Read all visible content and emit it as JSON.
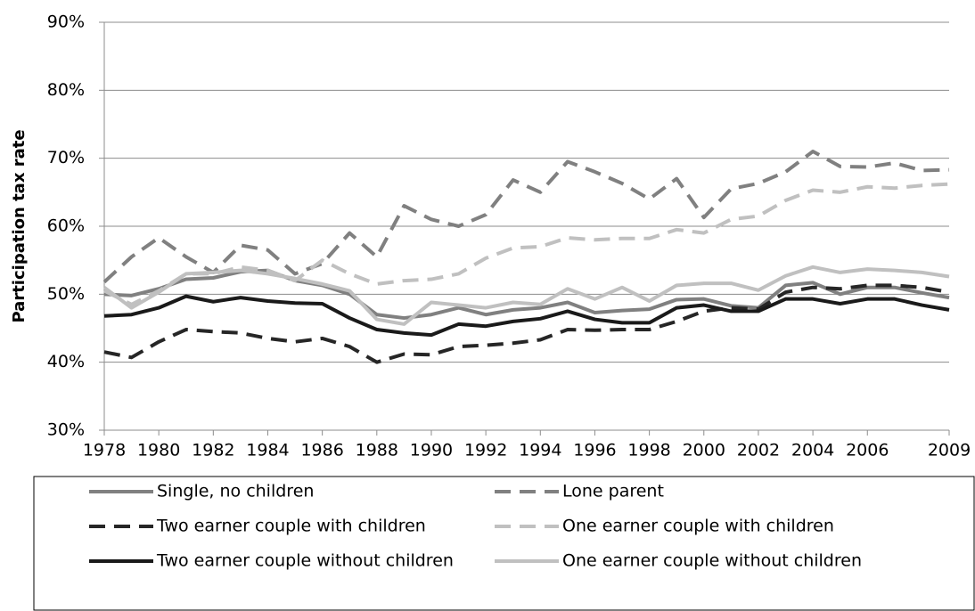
{
  "chart_data": {
    "type": "line",
    "y_label": "Participation tax rate",
    "x": [
      1978,
      1979,
      1980,
      1981,
      1982,
      1983,
      1984,
      1985,
      1986,
      1987,
      1988,
      1989,
      1990,
      1991,
      1992,
      1993,
      1994,
      1995,
      1996,
      1997,
      1998,
      1999,
      2000,
      2001,
      2002,
      2003,
      2004,
      2005,
      2006,
      2007,
      2008,
      2009
    ],
    "xlim": [
      1978,
      2009
    ],
    "xticks": [
      1978,
      1980,
      1982,
      1984,
      1986,
      1988,
      1990,
      1992,
      1994,
      1996,
      1998,
      2000,
      2002,
      2004,
      2006,
      2009
    ],
    "ylim": [
      30,
      90
    ],
    "yticks": [
      {
        "value": 30,
        "label": "30%"
      },
      {
        "value": 40,
        "label": "40%"
      },
      {
        "value": 50,
        "label": "50%"
      },
      {
        "value": 60,
        "label": "60%"
      },
      {
        "value": 70,
        "label": "70%"
      },
      {
        "value": 80,
        "label": "80%"
      },
      {
        "value": 90,
        "label": "90%"
      }
    ],
    "grid": true,
    "legend": "bottom",
    "series": [
      {
        "name": "Single, no children",
        "color": "#808080",
        "style": "solid",
        "values": [
          50,
          49.8,
          50.8,
          52.2,
          52.4,
          53.3,
          53.5,
          52,
          51.3,
          50,
          47,
          46.5,
          47,
          48,
          47,
          47.7,
          48,
          48.8,
          47.3,
          47.6,
          47.8,
          49.2,
          49.3,
          48.3,
          48,
          51.3,
          51.7,
          50,
          51,
          51,
          50.2,
          49.5
        ]
      },
      {
        "name": "Lone parent",
        "color": "#808080",
        "style": "dashed",
        "values": [
          51.8,
          55.5,
          58.3,
          55.5,
          53.2,
          57.2,
          56.5,
          53,
          54.5,
          59,
          55.5,
          63,
          61,
          60,
          61.7,
          66.8,
          65,
          69.5,
          68,
          66.3,
          64,
          67,
          61.3,
          65.5,
          66.3,
          68,
          71,
          68.8,
          68.7,
          69.3,
          68.2,
          68.3
        ]
      },
      {
        "name": "Two earner couple with children",
        "color": "#262626",
        "style": "dashed",
        "values": [
          41.5,
          40.7,
          43,
          44.8,
          44.5,
          44.3,
          43.5,
          43,
          43.5,
          42.3,
          40,
          41.2,
          41.1,
          42.3,
          42.5,
          42.8,
          43.3,
          44.8,
          44.7,
          44.8,
          44.8,
          46,
          47.5,
          48,
          47.8,
          50.3,
          51,
          50.8,
          51.3,
          51.3,
          51,
          50.3
        ]
      },
      {
        "name": "One earner couple with children",
        "color": "#c0c0c0",
        "style": "dashed",
        "values": [
          50.5,
          48.5,
          50.5,
          53,
          53,
          54,
          53.5,
          52,
          55,
          53,
          51.5,
          52,
          52.2,
          53,
          55.3,
          56.8,
          57,
          58.3,
          58,
          58.2,
          58.2,
          59.5,
          59,
          61,
          61.5,
          63.8,
          65.3,
          65,
          65.8,
          65.6,
          66,
          66.2
        ]
      },
      {
        "name": "Two earner couple without children",
        "color": "#1a1a1a",
        "style": "solid",
        "values": [
          46.8,
          47,
          48,
          49.7,
          48.9,
          49.5,
          49,
          48.7,
          48.6,
          46.5,
          44.8,
          44.3,
          44,
          45.6,
          45.3,
          46,
          46.4,
          47.5,
          46.3,
          45.8,
          45.8,
          48,
          48.4,
          47.5,
          47.5,
          49.3,
          49.3,
          48.6,
          49.3,
          49.3,
          48.4,
          47.7
        ]
      },
      {
        "name": "One earner couple without children",
        "color": "#c0c0c0",
        "style": "solid",
        "values": [
          51,
          48,
          50.3,
          53,
          53.2,
          53.5,
          53,
          52.3,
          51.5,
          50.5,
          46.3,
          45.6,
          48.8,
          48.4,
          48,
          48.8,
          48.5,
          50.8,
          49.3,
          51,
          49,
          51.3,
          51.6,
          51.6,
          50.6,
          52.7,
          54,
          53.2,
          53.7,
          53.5,
          53.2,
          52.6
        ]
      }
    ]
  }
}
